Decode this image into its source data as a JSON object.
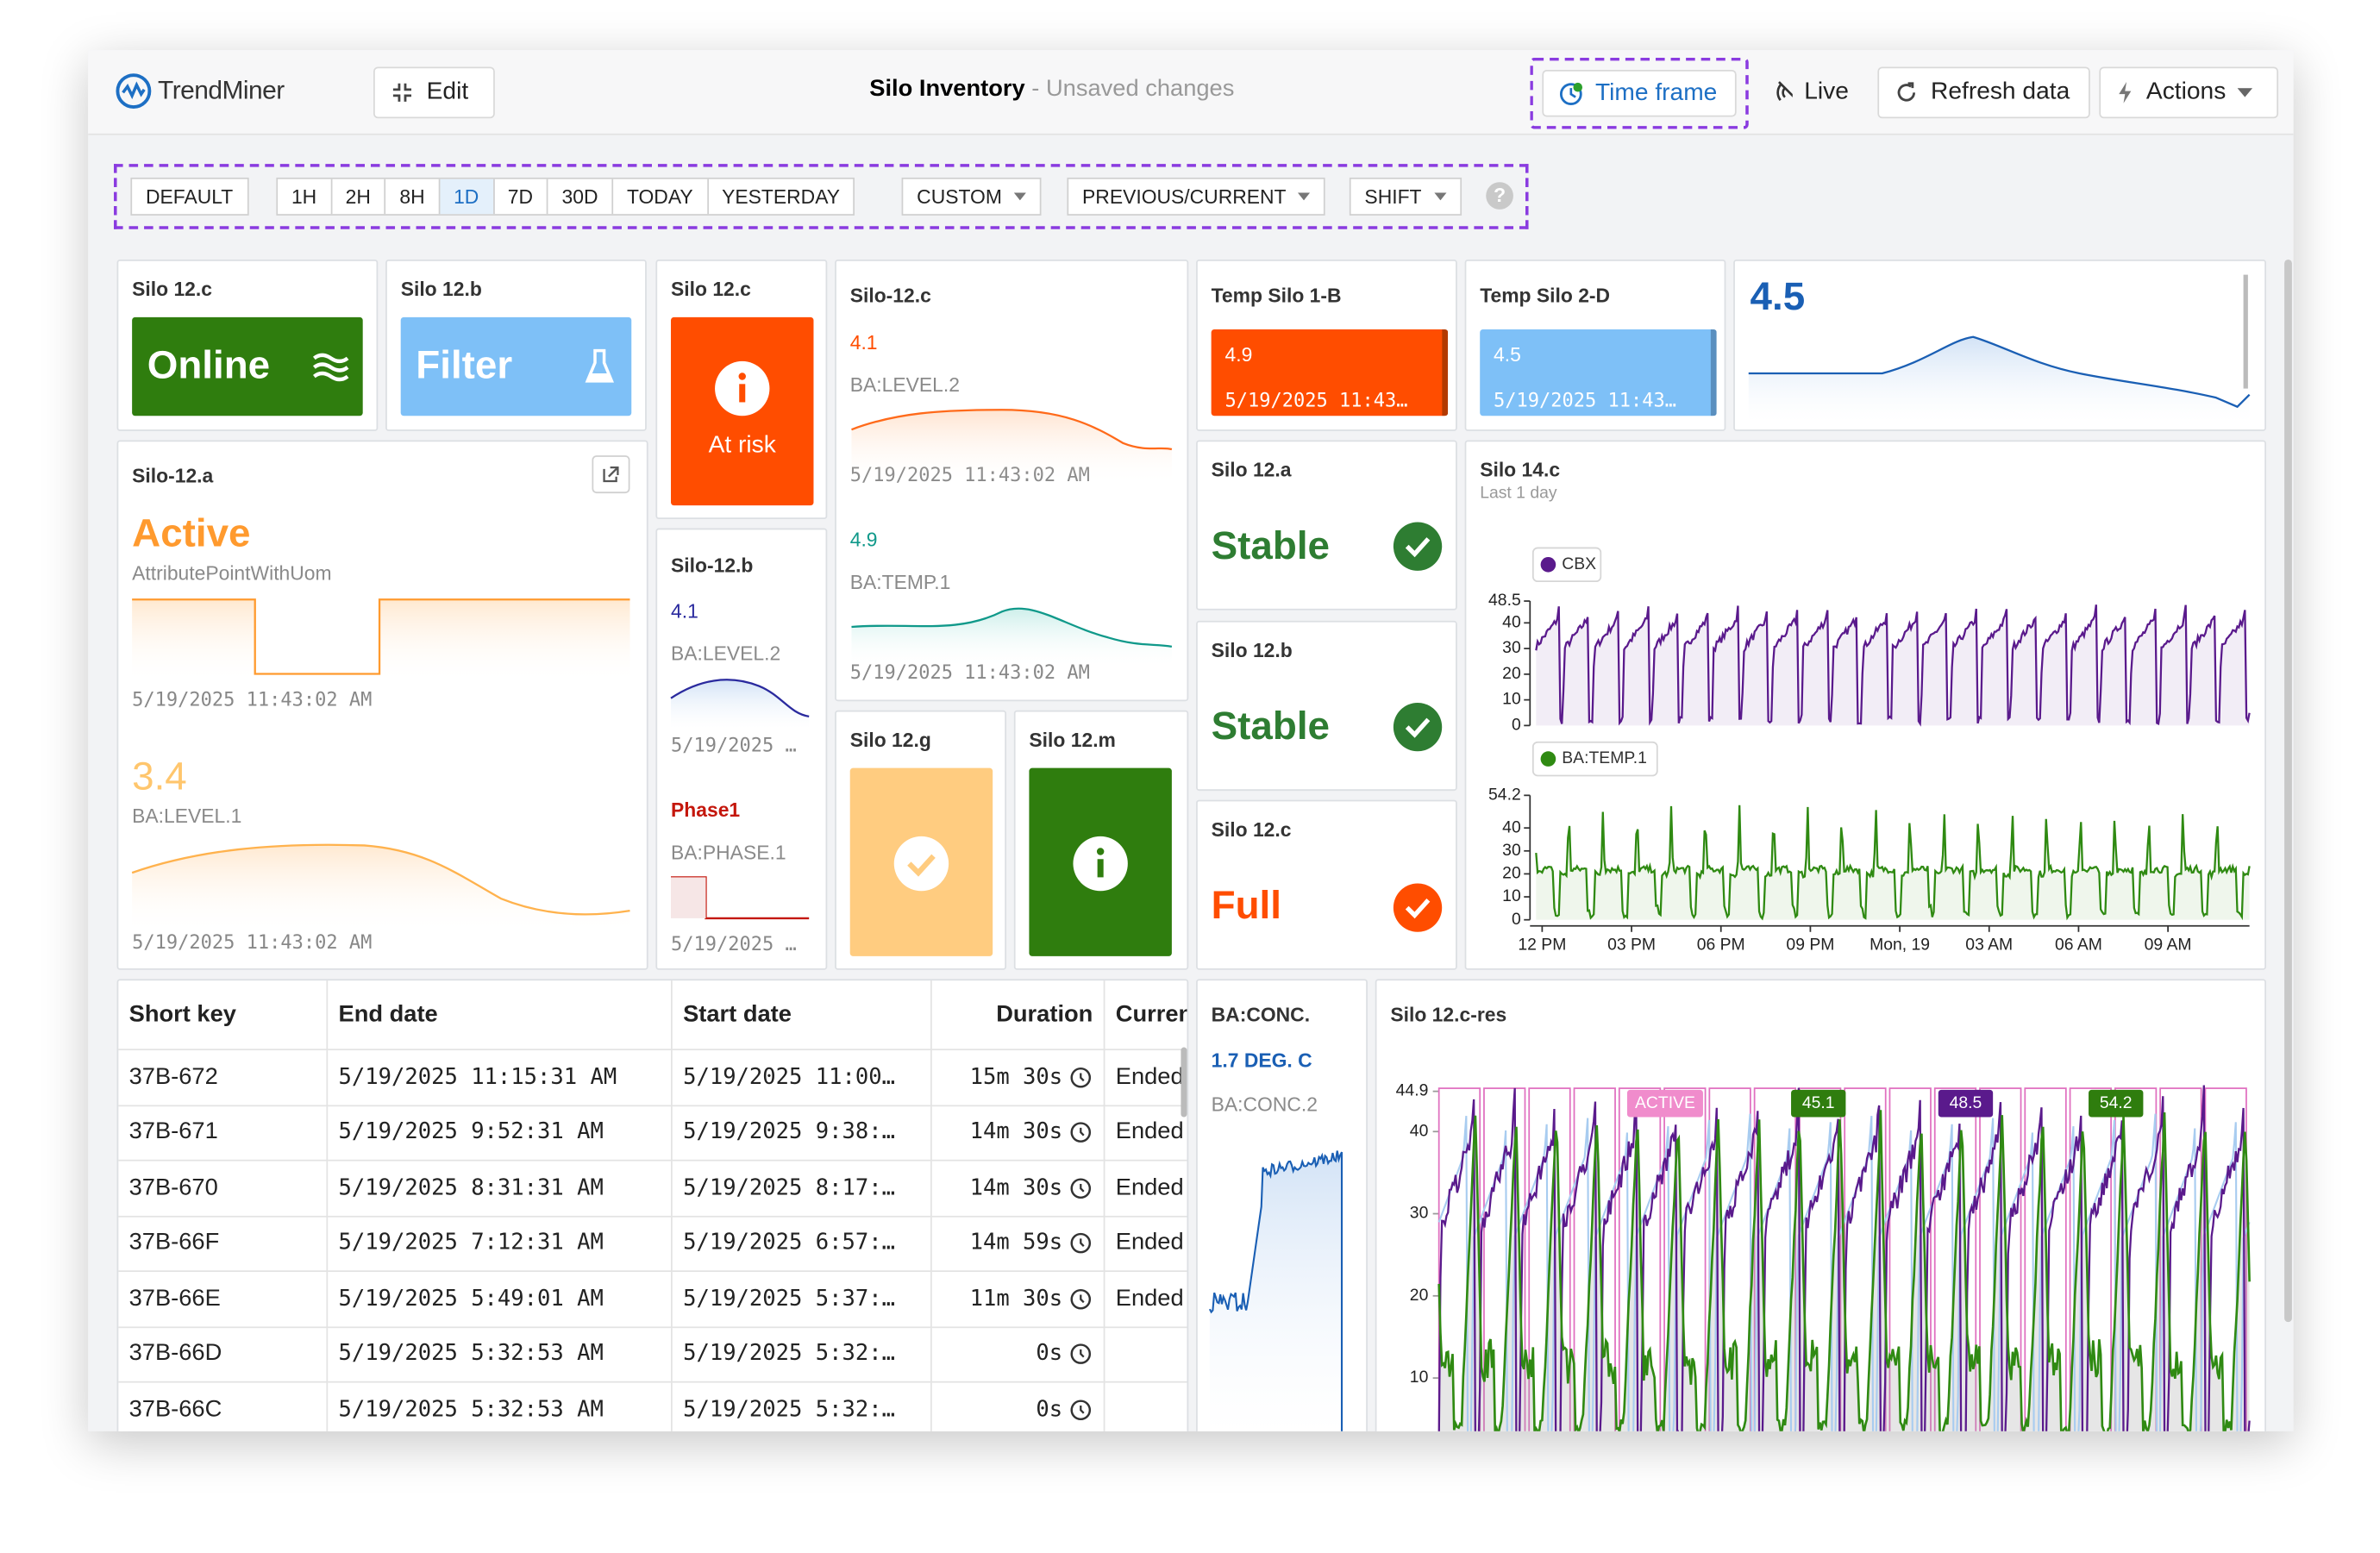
{
  "header": {
    "logo": "TrendMiner",
    "edit": "Edit",
    "title": "Silo Inventory",
    "status": "- Unsaved changes",
    "time_frame": "Time frame",
    "live": "Live",
    "refresh": "Refresh data",
    "actions": "Actions"
  },
  "timeframe": {
    "default": "DEFAULT",
    "ranges": [
      "1H",
      "2H",
      "8H",
      "1D",
      "7D",
      "30D",
      "TODAY",
      "YESTERDAY"
    ],
    "selected": "1D",
    "custom": "CUSTOM",
    "previous_current": "PREVIOUS/CURRENT",
    "shift": "SHIFT",
    "help": "?"
  },
  "tiles": {
    "online": {
      "title": "Silo 12.c",
      "state": "Online"
    },
    "filter": {
      "title": "Silo 12.b",
      "state": "Filter"
    },
    "at_risk": {
      "title": "Silo 12.c",
      "state": "At risk"
    },
    "silo12c": {
      "title": "Silo-12.c",
      "value1": 4.1,
      "tag1": "BA:LEVEL.2",
      "time1": "5/19/2025 11:43:02 AM",
      "value2": 4.9,
      "tag2": "BA:TEMP.1",
      "time2": "5/19/2025 11:43:02 AM"
    },
    "temp1b": {
      "title": "Temp Silo 1-B",
      "value": 4.9,
      "time": "5/19/2025 11:43…"
    },
    "temp2d": {
      "title": "Temp Silo 2-D",
      "value": 4.5,
      "time": "5/19/2025 11:43…"
    },
    "kpi": {
      "value": 4.5
    },
    "silo12a": {
      "title": "Silo-12.a",
      "state": "Active",
      "tag1": "AttributePointWithUom",
      "time1": "5/19/2025 11:43:02 AM",
      "value2": 3.4,
      "tag2": "BA:LEVEL.1",
      "time2": "5/19/2025 11:43:02 AM"
    },
    "silo12b": {
      "title": "Silo-12.b",
      "value1": 4.1,
      "tag1": "BA:LEVEL.2",
      "time1": "5/19/2025 …",
      "state2": "Phase1",
      "tag2": "BA:PHASE.1",
      "time2": "5/19/2025 …"
    },
    "silo12g": {
      "title": "Silo 12.g"
    },
    "silo12m": {
      "title": "Silo 12.m"
    },
    "stable_a": {
      "title": "Silo 12.a",
      "state": "Stable"
    },
    "stable_b": {
      "title": "Silo 12.b",
      "state": "Stable"
    },
    "full_c": {
      "title": "Silo 12.c",
      "state": "Full"
    },
    "conc": {
      "title": "BA:CONC.",
      "value": "1.7 DEG. C",
      "tag": "BA:CONC.2"
    }
  },
  "silo14c": {
    "title": "Silo 14.c",
    "subtitle": "Last 1 day",
    "panels": [
      {
        "name": "CBX",
        "color": "#5a1a8c",
        "ylim": [
          0,
          48.5
        ],
        "yticks": [
          0,
          10,
          20,
          30,
          40,
          48.5
        ]
      },
      {
        "name": "BA:TEMP.1",
        "color": "#2f8a12",
        "ylim": [
          0,
          54.2
        ],
        "yticks": [
          0,
          10,
          20,
          30,
          40,
          54.2
        ]
      }
    ],
    "xticks": [
      "12 PM",
      "03 PM",
      "06 PM",
      "09 PM",
      "Mon, 19",
      "03 AM",
      "06 AM",
      "09 AM"
    ]
  },
  "table": {
    "columns": [
      "Short key",
      "End date",
      "Start date",
      "Duration",
      "Current"
    ],
    "rows": [
      [
        "37B-672",
        "5/19/2025 11:15:31 AM",
        "5/19/2025 11:00…",
        "15m 30s",
        "Ended"
      ],
      [
        "37B-671",
        "5/19/2025 9:52:31 AM",
        "5/19/2025 9:38:…",
        "14m 30s",
        "Ended"
      ],
      [
        "37B-670",
        "5/19/2025 8:31:31 AM",
        "5/19/2025 8:17:…",
        "14m 30s",
        "Ended"
      ],
      [
        "37B-66F",
        "5/19/2025 7:12:31 AM",
        "5/19/2025 6:57:…",
        "14m 59s",
        "Ended"
      ],
      [
        "37B-66E",
        "5/19/2025 5:49:01 AM",
        "5/19/2025 5:37:…",
        "11m 30s",
        "Ended"
      ],
      [
        "37B-66D",
        "5/19/2025 5:32:53 AM",
        "5/19/2025 5:32:…",
        "0s"
      ],
      [
        "37B-66C",
        "5/19/2025 5:32:53 AM",
        "5/19/2025 5:32:…",
        "0s"
      ]
    ]
  },
  "silo12cres": {
    "title": "Silo 12.c-res",
    "ylim": [
      0,
      44.9
    ],
    "yticks": [
      10,
      20,
      30,
      40,
      44.9
    ],
    "badges": [
      {
        "label": "ACTIVE",
        "color": "#f08ccc"
      },
      {
        "label": "45.1",
        "color": "#2f7d0e"
      },
      {
        "label": "48.5",
        "color": "#5a1a8c"
      },
      {
        "label": "54.2",
        "color": "#2f7d0e"
      }
    ]
  }
}
